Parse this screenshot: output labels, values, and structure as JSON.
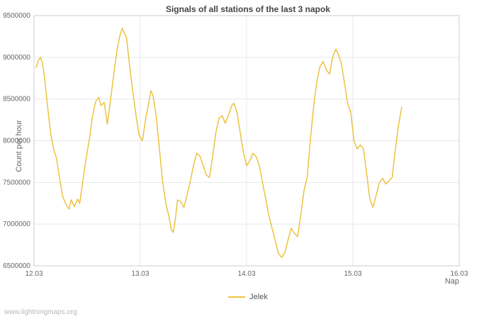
{
  "legend": {
    "label": "Jelek",
    "color": "#edc240"
  },
  "watermark": "www.lightningmaps.org",
  "colors": {
    "line": "#edc240",
    "grid": "#e8e8e8",
    "axis_border": "#cccccc",
    "tick_text": "#666666"
  },
  "chart_data": {
    "type": "line",
    "title": "Signals of all stations of the last 3 napok",
    "xlabel": "Nap",
    "ylabel": "Count per hour",
    "xlim": [
      12,
      16
    ],
    "ylim": [
      6500000,
      9500000
    ],
    "grid": true,
    "legend_position": "bottom-center",
    "x_ticks": [
      {
        "value": 12,
        "label": "12.03"
      },
      {
        "value": 13,
        "label": "13.03"
      },
      {
        "value": 14,
        "label": "14.03"
      },
      {
        "value": 15,
        "label": "15.03"
      },
      {
        "value": 16,
        "label": "16.03"
      }
    ],
    "y_ticks": [
      {
        "value": 6500000,
        "label": "6500000"
      },
      {
        "value": 7000000,
        "label": "7000000"
      },
      {
        "value": 7500000,
        "label": "7500000"
      },
      {
        "value": 8000000,
        "label": "8000000"
      },
      {
        "value": 8500000,
        "label": "8500000"
      },
      {
        "value": 9000000,
        "label": "9000000"
      },
      {
        "value": 9500000,
        "label": "9500000"
      }
    ],
    "series": [
      {
        "name": "Jelek",
        "color": "#edc240",
        "points": [
          [
            12.02,
            8880000
          ],
          [
            12.04,
            8960000
          ],
          [
            12.06,
            9000000
          ],
          [
            12.08,
            8930000
          ],
          [
            12.1,
            8750000
          ],
          [
            12.13,
            8380000
          ],
          [
            12.16,
            8060000
          ],
          [
            12.19,
            7870000
          ],
          [
            12.21,
            7800000
          ],
          [
            12.24,
            7550000
          ],
          [
            12.27,
            7330000
          ],
          [
            12.3,
            7240000
          ],
          [
            12.33,
            7180000
          ],
          [
            12.35,
            7290000
          ],
          [
            12.38,
            7210000
          ],
          [
            12.41,
            7300000
          ],
          [
            12.43,
            7250000
          ],
          [
            12.46,
            7520000
          ],
          [
            12.49,
            7790000
          ],
          [
            12.52,
            8010000
          ],
          [
            12.55,
            8290000
          ],
          [
            12.58,
            8470000
          ],
          [
            12.61,
            8520000
          ],
          [
            12.63,
            8420000
          ],
          [
            12.66,
            8460000
          ],
          [
            12.69,
            8200000
          ],
          [
            12.72,
            8490000
          ],
          [
            12.75,
            8790000
          ],
          [
            12.78,
            9080000
          ],
          [
            12.81,
            9270000
          ],
          [
            12.83,
            9350000
          ],
          [
            12.85,
            9290000
          ],
          [
            12.87,
            9240000
          ],
          [
            12.9,
            8890000
          ],
          [
            12.93,
            8580000
          ],
          [
            12.96,
            8300000
          ],
          [
            12.99,
            8060000
          ],
          [
            13.02,
            8000000
          ],
          [
            13.05,
            8260000
          ],
          [
            13.08,
            8460000
          ],
          [
            13.1,
            8600000
          ],
          [
            13.12,
            8540000
          ],
          [
            13.15,
            8290000
          ],
          [
            13.18,
            7900000
          ],
          [
            13.21,
            7510000
          ],
          [
            13.24,
            7250000
          ],
          [
            13.27,
            7090000
          ],
          [
            13.29,
            6940000
          ],
          [
            13.31,
            6900000
          ],
          [
            13.33,
            7060000
          ],
          [
            13.35,
            7290000
          ],
          [
            13.38,
            7270000
          ],
          [
            13.41,
            7200000
          ],
          [
            13.44,
            7350000
          ],
          [
            13.47,
            7510000
          ],
          [
            13.5,
            7700000
          ],
          [
            13.53,
            7850000
          ],
          [
            13.56,
            7820000
          ],
          [
            13.59,
            7710000
          ],
          [
            13.62,
            7590000
          ],
          [
            13.65,
            7560000
          ],
          [
            13.68,
            7800000
          ],
          [
            13.71,
            8090000
          ],
          [
            13.74,
            8270000
          ],
          [
            13.77,
            8300000
          ],
          [
            13.8,
            8210000
          ],
          [
            13.83,
            8310000
          ],
          [
            13.86,
            8420000
          ],
          [
            13.88,
            8450000
          ],
          [
            13.91,
            8340000
          ],
          [
            13.94,
            8100000
          ],
          [
            13.97,
            7860000
          ],
          [
            14.0,
            7700000
          ],
          [
            14.03,
            7760000
          ],
          [
            14.06,
            7850000
          ],
          [
            14.09,
            7810000
          ],
          [
            14.12,
            7700000
          ],
          [
            14.15,
            7500000
          ],
          [
            14.18,
            7300000
          ],
          [
            14.21,
            7100000
          ],
          [
            14.24,
            6950000
          ],
          [
            14.27,
            6800000
          ],
          [
            14.3,
            6650000
          ],
          [
            14.33,
            6600000
          ],
          [
            14.36,
            6660000
          ],
          [
            14.39,
            6810000
          ],
          [
            14.42,
            6950000
          ],
          [
            14.45,
            6890000
          ],
          [
            14.48,
            6850000
          ],
          [
            14.51,
            7110000
          ],
          [
            14.54,
            7400000
          ],
          [
            14.57,
            7560000
          ],
          [
            14.6,
            8010000
          ],
          [
            14.63,
            8400000
          ],
          [
            14.66,
            8700000
          ],
          [
            14.69,
            8890000
          ],
          [
            14.72,
            8950000
          ],
          [
            14.75,
            8850000
          ],
          [
            14.78,
            8800000
          ],
          [
            14.81,
            9000000
          ],
          [
            14.84,
            9100000
          ],
          [
            14.86,
            9040000
          ],
          [
            14.89,
            8940000
          ],
          [
            14.92,
            8700000
          ],
          [
            14.95,
            8450000
          ],
          [
            14.98,
            8340000
          ],
          [
            15.01,
            8000000
          ],
          [
            15.04,
            7900000
          ],
          [
            15.07,
            7950000
          ],
          [
            15.1,
            7900000
          ],
          [
            15.13,
            7600000
          ],
          [
            15.16,
            7300000
          ],
          [
            15.19,
            7200000
          ],
          [
            15.22,
            7350000
          ],
          [
            15.25,
            7500000
          ],
          [
            15.28,
            7550000
          ],
          [
            15.31,
            7480000
          ],
          [
            15.34,
            7520000
          ],
          [
            15.37,
            7560000
          ],
          [
            15.4,
            7900000
          ],
          [
            15.43,
            8190000
          ],
          [
            15.46,
            8400000
          ]
        ]
      }
    ]
  }
}
